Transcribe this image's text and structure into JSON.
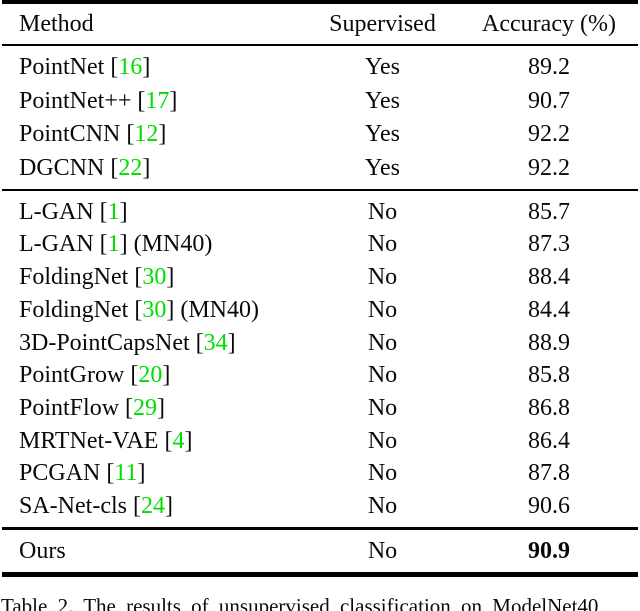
{
  "table": {
    "columns": [
      "Method",
      "Supervised",
      "Accuracy (%)"
    ],
    "groups": {
      "supervised": [
        {
          "method": "PointNet",
          "cite": "16",
          "suffix": "",
          "supervised": "Yes",
          "accuracy": "89.2",
          "bold": false
        },
        {
          "method": "PointNet++",
          "cite": "17",
          "suffix": "",
          "supervised": "Yes",
          "accuracy": "90.7",
          "bold": false
        },
        {
          "method": "PointCNN",
          "cite": "12",
          "suffix": "",
          "supervised": "Yes",
          "accuracy": "92.2",
          "bold": false
        },
        {
          "method": "DGCNN",
          "cite": "22",
          "suffix": "",
          "supervised": "Yes",
          "accuracy": "92.2",
          "bold": false
        }
      ],
      "unsupervised": [
        {
          "method": "L-GAN",
          "cite": "1",
          "suffix": "",
          "supervised": "No",
          "accuracy": "85.7",
          "bold": false
        },
        {
          "method": "L-GAN",
          "cite": "1",
          "suffix": " (MN40)",
          "supervised": "No",
          "accuracy": "87.3",
          "bold": false
        },
        {
          "method": "FoldingNet",
          "cite": "30",
          "suffix": "",
          "supervised": "No",
          "accuracy": "88.4",
          "bold": false
        },
        {
          "method": "FoldingNet",
          "cite": "30",
          "suffix": " (MN40)",
          "supervised": "No",
          "accuracy": "84.4",
          "bold": false
        },
        {
          "method": "3D-PointCapsNet",
          "cite": "34",
          "suffix": "",
          "supervised": "No",
          "accuracy": "88.9",
          "bold": false
        },
        {
          "method": "PointGrow",
          "cite": "20",
          "suffix": "",
          "supervised": "No",
          "accuracy": "85.8",
          "bold": false
        },
        {
          "method": "PointFlow",
          "cite": "29",
          "suffix": "",
          "supervised": "No",
          "accuracy": "86.8",
          "bold": false
        },
        {
          "method": "MRTNet-VAE",
          "cite": "4",
          "suffix": "",
          "supervised": "No",
          "accuracy": "86.4",
          "bold": false
        },
        {
          "method": "PCGAN",
          "cite": "11",
          "suffix": "",
          "supervised": "No",
          "accuracy": "87.8",
          "bold": false
        },
        {
          "method": "SA-Net-cls",
          "cite": "24",
          "suffix": "",
          "supervised": "No",
          "accuracy": "90.6",
          "bold": false
        }
      ],
      "ours": [
        {
          "method": "Ours",
          "cite": "",
          "suffix": "",
          "supervised": "No",
          "accuracy": "90.9",
          "bold": true
        }
      ]
    }
  },
  "caption": {
    "text": "Table 2. The results of unsupervised classification on ModelNet40"
  },
  "colors": {
    "citation_green": "#00dd00",
    "text_black": "#0a0a0a"
  }
}
